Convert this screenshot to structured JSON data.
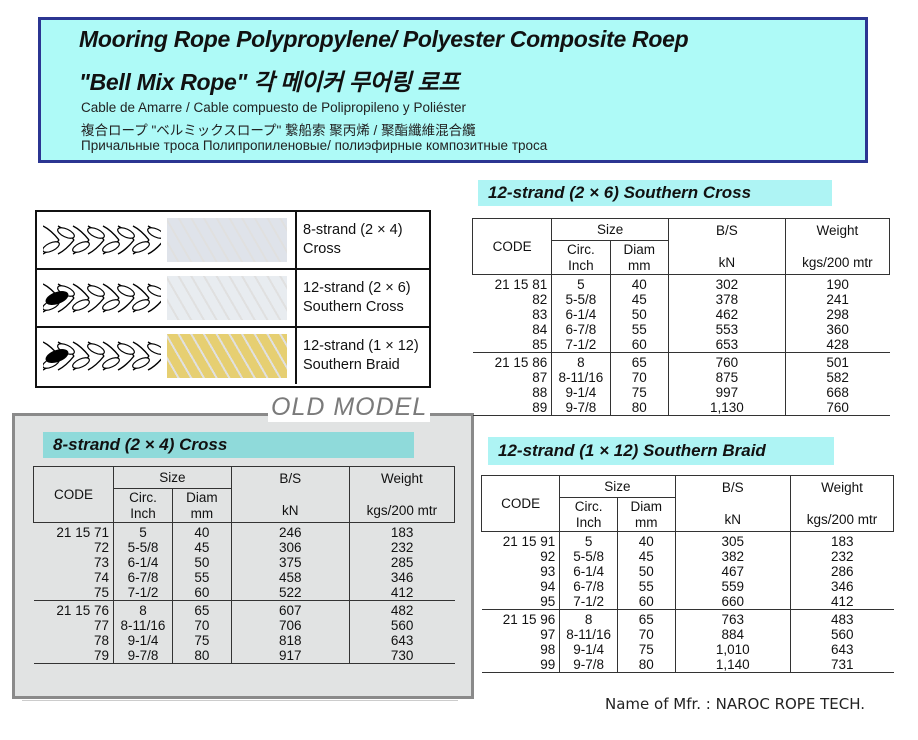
{
  "header": {
    "title1": "Mooring Rope   Polypropylene/ Polyester Composite Roep",
    "title2": "\"Bell Mix Rope\"   각 메이커 무어링 로프",
    "spanish": "Cable de Amarre / Cable compuesto de  Polipropileno y Poliéster",
    "japanese": "複合ロープ  \"ベルミックスロープ\" 繋船索  聚丙烯 / 聚酯纖維混合纜",
    "russian": "Причальные троса Полипропиленовые/ полиэфирные композитные троса"
  },
  "rope_types": [
    {
      "line1": "8-strand (2 × 4)",
      "line2": "Cross",
      "photo_color": "#dfe3ea"
    },
    {
      "line1": "12-strand (2 × 6)",
      "line2": "Southern Cross",
      "photo_color": "#e8ecf0"
    },
    {
      "line1": "12-strand (1 × 12)",
      "line2": "Southern Braid",
      "photo_color": "#e6cf72"
    }
  ],
  "old_model_label": "OLD MODEL",
  "headers": {
    "code": "CODE",
    "size": "Size",
    "circ": "Circ.",
    "inch": "Inch",
    "diam": "Diam",
    "mm": "mm",
    "bs": "B/S",
    "kn": "kN",
    "weight": "Weight",
    "weight_unit": "kgs/200 mtr"
  },
  "tables": {
    "southern_cross": {
      "title": "12-strand (2 × 6) Southern Cross",
      "groups": [
        [
          [
            "21 15 81",
            "5",
            "40",
            "302",
            "190"
          ],
          [
            "82",
            "5-5/8",
            "45",
            "378",
            "241"
          ],
          [
            "83",
            "6-1/4",
            "50",
            "462",
            "298"
          ],
          [
            "84",
            "6-7/8",
            "55",
            "553",
            "360"
          ],
          [
            "85",
            "7-1/2",
            "60",
            "653",
            "428"
          ]
        ],
        [
          [
            "21 15 86",
            "8",
            "65",
            "760",
            "501"
          ],
          [
            "87",
            "8-11/16",
            "70",
            "875",
            "582"
          ],
          [
            "88",
            "9-1/4",
            "75",
            "997",
            "668"
          ],
          [
            "89",
            "9-7/8",
            "80",
            "1,130",
            "760"
          ]
        ]
      ]
    },
    "cross": {
      "title": "8-strand (2 × 4) Cross",
      "groups": [
        [
          [
            "21 15 71",
            "5",
            "40",
            "246",
            "183"
          ],
          [
            "72",
            "5-5/8",
            "45",
            "306",
            "232"
          ],
          [
            "73",
            "6-1/4",
            "50",
            "375",
            "285"
          ],
          [
            "74",
            "6-7/8",
            "55",
            "458",
            "346"
          ],
          [
            "75",
            "7-1/2",
            "60",
            "522",
            "412"
          ]
        ],
        [
          [
            "21 15 76",
            "8",
            "65",
            "607",
            "482"
          ],
          [
            "77",
            "8-11/16",
            "70",
            "706",
            "560"
          ],
          [
            "78",
            "9-1/4",
            "75",
            "818",
            "643"
          ],
          [
            "79",
            "9-7/8",
            "80",
            "917",
            "730"
          ]
        ]
      ]
    },
    "southern_braid": {
      "title": "12-strand (1 × 12) Southern Braid",
      "groups": [
        [
          [
            "21 15 91",
            "5",
            "40",
            "305",
            "183"
          ],
          [
            "92",
            "5-5/8",
            "45",
            "382",
            "232"
          ],
          [
            "93",
            "6-1/4",
            "50",
            "467",
            "286"
          ],
          [
            "94",
            "6-7/8",
            "55",
            "559",
            "346"
          ],
          [
            "95",
            "7-1/2",
            "60",
            "660",
            "412"
          ]
        ],
        [
          [
            "21 15 96",
            "8",
            "65",
            "763",
            "483"
          ],
          [
            "97",
            "8-11/16",
            "70",
            "884",
            "560"
          ],
          [
            "98",
            "9-1/4",
            "75",
            "1,010",
            "643"
          ],
          [
            "99",
            "9-7/8",
            "80",
            "1,140",
            "731"
          ]
        ]
      ]
    }
  },
  "footer": "Name of Mfr. : NAROC ROPE TECH.",
  "colors": {
    "header_bg": "#aefaf7",
    "header_border": "#2b3592",
    "title_bar": "#aef4f4",
    "old_title_bar": "#8fdada",
    "old_bg": "#e1e3e3"
  }
}
